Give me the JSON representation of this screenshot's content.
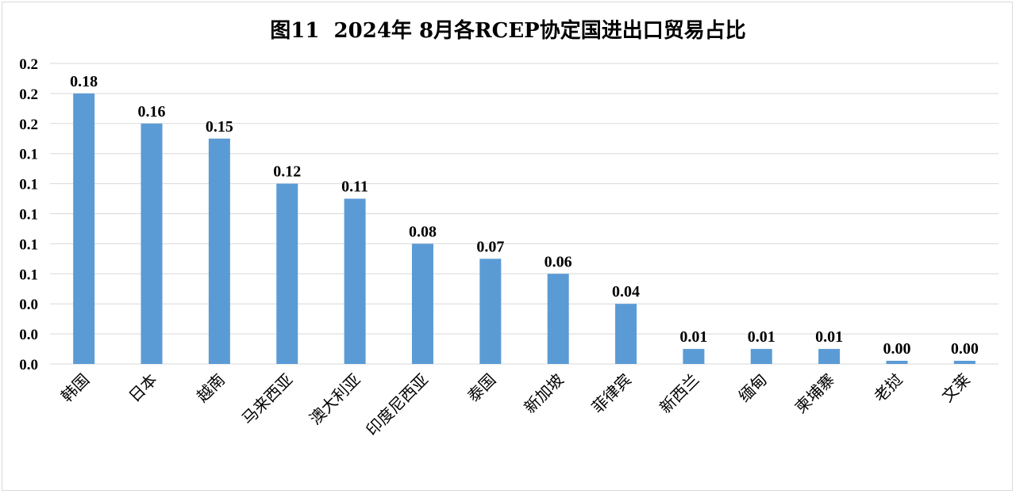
{
  "chart_data": {
    "type": "bar",
    "title": "图11  2024年 8月各RCEP协定国进出口贸易占比",
    "xlabel": "",
    "ylabel": "",
    "categories": [
      "韩国",
      "日本",
      "越南",
      "马来西亚",
      "澳大利亚",
      "印度尼西亚",
      "泰国",
      "新加坡",
      "菲律宾",
      "新西兰",
      "缅甸",
      "柬埔寨",
      "老挝",
      "文莱"
    ],
    "values": [
      0.18,
      0.16,
      0.15,
      0.12,
      0.11,
      0.08,
      0.07,
      0.06,
      0.04,
      0.01,
      0.01,
      0.01,
      0.0,
      0.0
    ],
    "data_labels": [
      "0.18",
      "0.16",
      "0.15",
      "0.12",
      "0.11",
      "0.08",
      "0.07",
      "0.06",
      "0.04",
      "0.01",
      "0.01",
      "0.01",
      "0.00",
      "0.00"
    ],
    "y_tick_labels": [
      "0.0",
      "0.0",
      "0.0",
      "0.1",
      "0.1",
      "0.1",
      "0.1",
      "0.1",
      "0.2",
      "0.2",
      "0.2"
    ],
    "ylim": [
      0,
      0.2
    ],
    "grid": true,
    "legend": "none",
    "bar_color": "#5B9BD5",
    "grid_color": "#d9d9d9"
  }
}
